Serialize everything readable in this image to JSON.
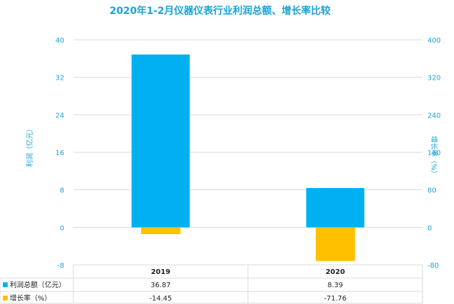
{
  "chart_data": {
    "type": "bar",
    "title": "2020年1-2月仪器仪表行业利润总额、增长率比较",
    "categories": [
      "2019",
      "2020"
    ],
    "series": [
      {
        "name": "利润总额（亿元）",
        "axis": "left",
        "color": "#00b0f0",
        "values": [
          36.87,
          8.39
        ]
      },
      {
        "name": "增长率（%）",
        "axis": "right",
        "color": "#ffc000",
        "values": [
          -14.45,
          -71.76
        ]
      }
    ],
    "ylabel": "利润（亿元）",
    "y2label": "增长率（%）",
    "ylim": [
      -8,
      40
    ],
    "y2lim": [
      -80,
      400
    ],
    "yticks": [
      "40",
      "32",
      "24",
      "16",
      "8",
      "0",
      "-8"
    ],
    "y2ticks": [
      "400",
      "320",
      "240",
      "160",
      "80",
      "0",
      "-80"
    ],
    "data_table": true
  }
}
